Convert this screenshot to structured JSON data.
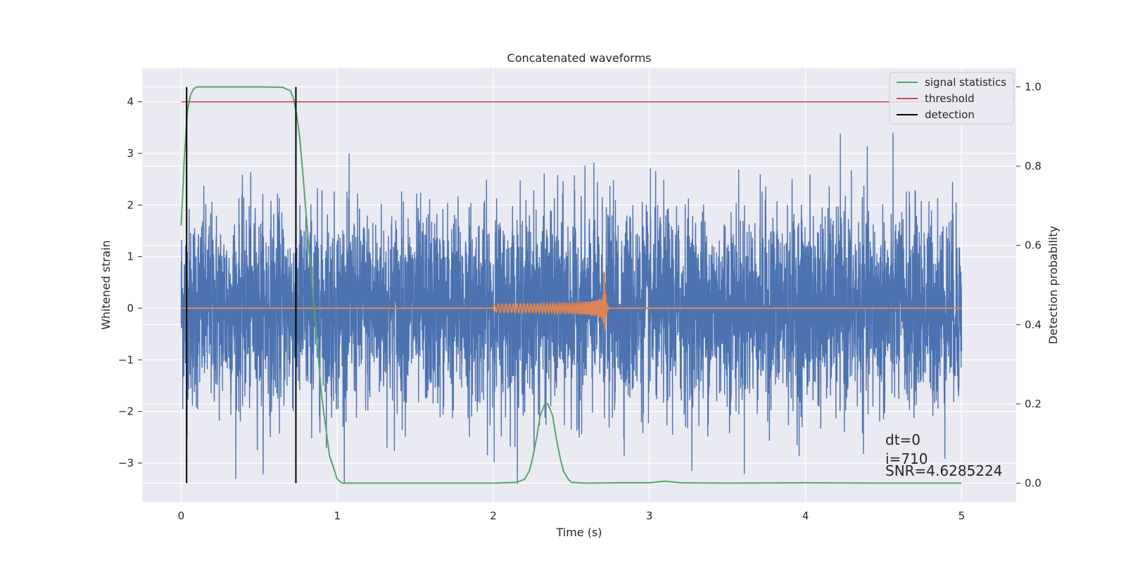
{
  "chart_data": {
    "type": "line",
    "title": "Concatenated waveforms",
    "xlabel": "Time (s)",
    "ylabel": "Whitened strain",
    "y2label": "Detection probability",
    "xlim": [
      -0.25,
      5.35
    ],
    "ylim": [
      -3.75,
      4.65
    ],
    "y2lim": [
      -0.047,
      1.047
    ],
    "xticks": [
      0,
      1,
      2,
      3,
      4,
      5
    ],
    "yticks": [
      -3,
      -2,
      -1,
      0,
      1,
      2,
      3,
      4
    ],
    "y2ticks": [
      0.0,
      0.2,
      0.4,
      0.6,
      0.8,
      1.0
    ],
    "grid": true,
    "legend_position": "top-right",
    "colors": {
      "background": "#eaeaf2",
      "grid": "#ffffff",
      "strain": "#4c72b0",
      "template": "#dd8452",
      "signal_statistics": "#55a868",
      "threshold": "#c44e52",
      "detection": "#000000"
    },
    "series": [
      {
        "name": "signal statistics",
        "axis": "right",
        "x": [
          0.0,
          0.02,
          0.04,
          0.06,
          0.08,
          0.1,
          0.15,
          0.3,
          0.5,
          0.65,
          0.7,
          0.72,
          0.74,
          0.76,
          0.78,
          0.8,
          0.85,
          0.9,
          0.95,
          1.0,
          1.03,
          1.1,
          1.5,
          2.0,
          2.15,
          2.2,
          2.23,
          2.25,
          2.28,
          2.3,
          2.33,
          2.35,
          2.38,
          2.4,
          2.43,
          2.45,
          2.48,
          2.5,
          2.6,
          2.8,
          3.0,
          3.1,
          3.15,
          3.2,
          3.5,
          4.0,
          4.5,
          5.0
        ],
        "values": [
          0.65,
          0.82,
          0.94,
          0.98,
          0.995,
          1.0,
          1.0,
          1.0,
          1.0,
          0.999,
          0.99,
          0.97,
          0.93,
          0.87,
          0.78,
          0.68,
          0.45,
          0.22,
          0.07,
          0.01,
          0.0,
          0.0,
          0.0,
          0.0,
          0.002,
          0.01,
          0.03,
          0.06,
          0.12,
          0.17,
          0.2,
          0.2,
          0.17,
          0.12,
          0.06,
          0.03,
          0.01,
          0.002,
          0.0,
          0.001,
          0.001,
          0.005,
          0.003,
          0.001,
          0.0,
          0.001,
          0.0,
          0.0
        ]
      },
      {
        "name": "threshold",
        "axis": "left",
        "x": [
          0,
          5.05
        ],
        "values": [
          4,
          4
        ]
      },
      {
        "name": "detection",
        "axis": "right",
        "x": [
          0.035,
          0.735
        ]
      }
    ],
    "annotations": {
      "dt": "dt=0",
      "i": "i=710",
      "snr": "SNR=4.6285224"
    }
  }
}
